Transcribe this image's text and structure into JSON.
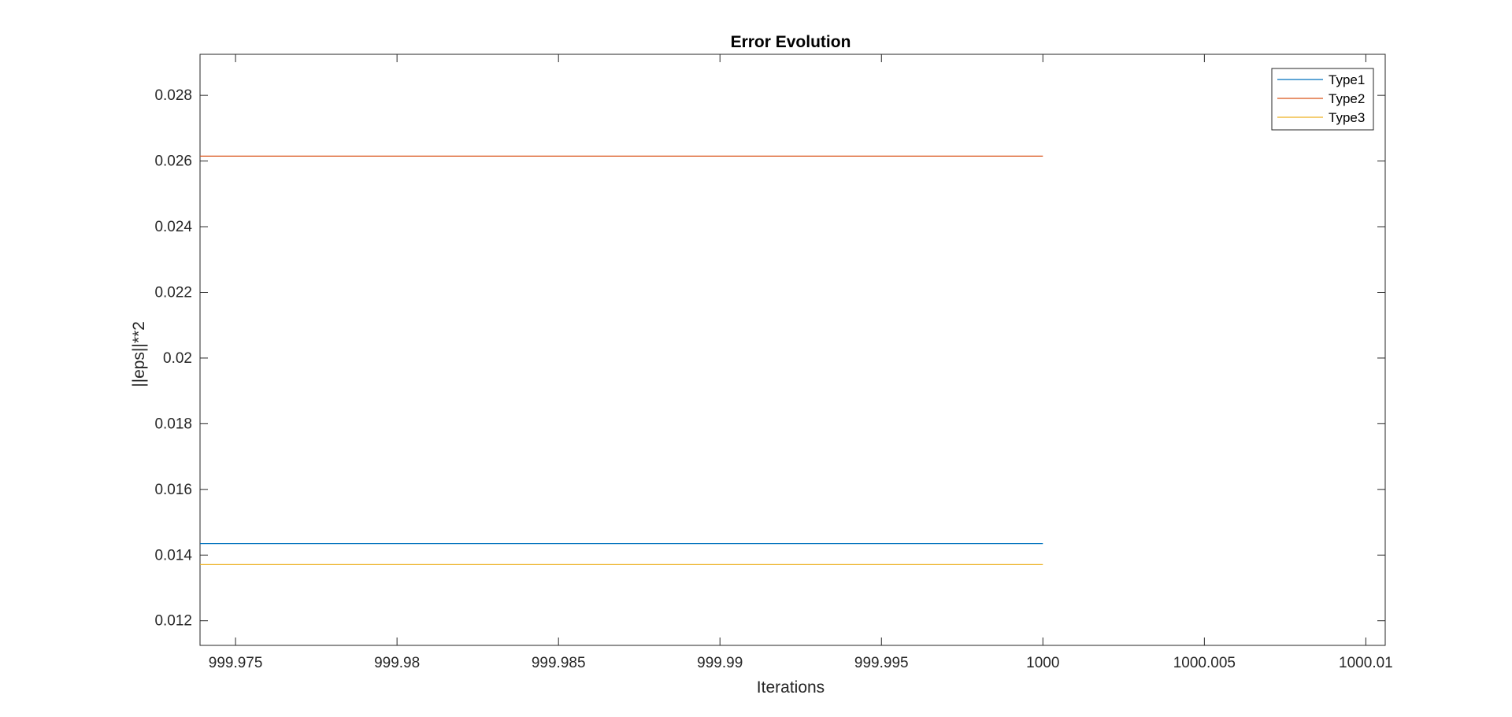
{
  "chart_data": {
    "type": "line",
    "title": "Error Evolution",
    "xlabel": "Iterations",
    "ylabel": "||eps||**2",
    "xlim": [
      999.9739,
      1000.0106
    ],
    "ylim": [
      0.01125,
      0.02925
    ],
    "x_ticks": [
      999.975,
      999.98,
      999.985,
      999.99,
      999.995,
      1000,
      1000.005,
      1000.01
    ],
    "x_tick_labels": [
      "999.975",
      "999.98",
      "999.985",
      "999.99",
      "999.995",
      "1000",
      "1000.005",
      "1000.01"
    ],
    "y_ticks": [
      0.012,
      0.014,
      0.016,
      0.018,
      0.02,
      0.022,
      0.024,
      0.026,
      0.028
    ],
    "y_tick_labels": [
      "0.012",
      "0.014",
      "0.016",
      "0.018",
      "0.02",
      "0.022",
      "0.024",
      "0.026",
      "0.028"
    ],
    "grid": false,
    "legend_position": "top-right",
    "series": [
      {
        "name": "Type1",
        "color": "#0072BD",
        "x": [
          999.9739,
          1000
        ],
        "y": [
          0.01435,
          0.01435
        ]
      },
      {
        "name": "Type2",
        "color": "#D95319",
        "x": [
          999.9739,
          1000
        ],
        "y": [
          0.02615,
          0.02615
        ]
      },
      {
        "name": "Type3",
        "color": "#EDB120",
        "x": [
          999.9739,
          1000
        ],
        "y": [
          0.01371,
          0.01371
        ]
      }
    ]
  }
}
